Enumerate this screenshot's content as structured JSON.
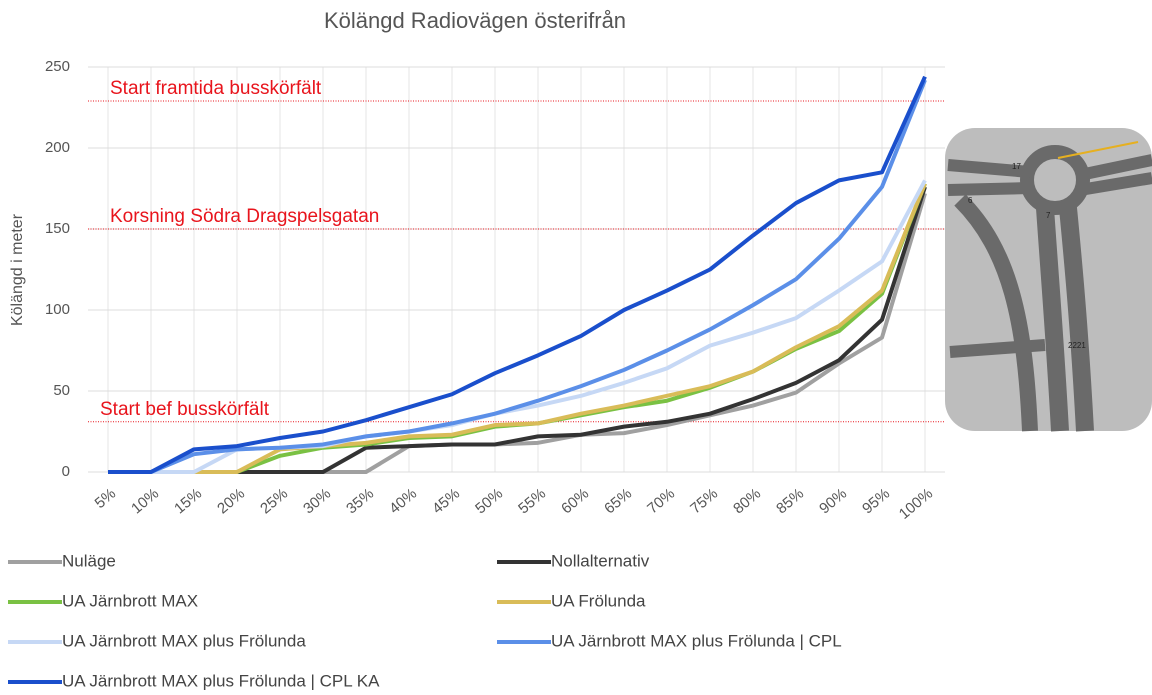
{
  "chart_data": {
    "type": "line",
    "title": "Kölängd Radiovägen österifrån",
    "y_label": "Kölängd i meter",
    "categories": [
      "5%",
      "10%",
      "15%",
      "20%",
      "25%",
      "30%",
      "35%",
      "40%",
      "45%",
      "50%",
      "55%",
      "60%",
      "65%",
      "70%",
      "75%",
      "80%",
      "85%",
      "90%",
      "95%",
      "100%"
    ],
    "series": [
      {
        "name": "Nuläge",
        "color": "#a0a0a0",
        "values": [
          0,
          0,
          0,
          0,
          0,
          0,
          0,
          16,
          17,
          17,
          18,
          23,
          24,
          29,
          35,
          41,
          49,
          67,
          83,
          172
        ]
      },
      {
        "name": "Nollalternativ",
        "color": "#333333",
        "values": [
          0,
          0,
          0,
          0,
          0,
          0,
          15,
          16,
          17,
          17,
          22,
          23,
          28,
          31,
          36,
          45,
          55,
          69,
          94,
          176
        ]
      },
      {
        "name": "UA Järnbrott MAX",
        "color": "#7ac143",
        "values": [
          0,
          0,
          0,
          0,
          10,
          15,
          17,
          21,
          22,
          28,
          30,
          35,
          40,
          44,
          52,
          62,
          76,
          87,
          110,
          178
        ]
      },
      {
        "name": "UA Frölunda",
        "color": "#d9bc58",
        "values": [
          0,
          0,
          0,
          0,
          14,
          16,
          18,
          22,
          23,
          29,
          30,
          36,
          41,
          47,
          53,
          62,
          77,
          90,
          112,
          178
        ]
      },
      {
        "name": "UA Järnbrott MAX plus Frölunda",
        "color": "#c6d8f5",
        "values": [
          0,
          0,
          0,
          14,
          15,
          16,
          22,
          25,
          29,
          36,
          41,
          47,
          55,
          64,
          78,
          86,
          95,
          112,
          130,
          180
        ]
      },
      {
        "name": "UA Järnbrott MAX plus Frölunda | CPL",
        "color": "#5b8fe8",
        "values": [
          0,
          0,
          11,
          14,
          15,
          17,
          22,
          25,
          30,
          36,
          44,
          53,
          63,
          75,
          88,
          103,
          119,
          144,
          176,
          242
        ]
      },
      {
        "name": "UA Järnbrott MAX plus Frölunda | CPL KA",
        "color": "#1a4fcc",
        "values": [
          0,
          0,
          14,
          16,
          21,
          25,
          32,
          40,
          48,
          61,
          72,
          84,
          100,
          112,
          125,
          146,
          166,
          180,
          185,
          244
        ]
      }
    ],
    "reference_lines": [
      {
        "label": "Start framtida busskörfält",
        "value": 229
      },
      {
        "label": "Korsning Södra Dragspelsgatan",
        "value": 150
      },
      {
        "label": "Start bef busskörfält",
        "value": 31
      }
    ],
    "map_labels": [
      "17",
      "6",
      "7",
      "2221"
    ],
    "ylim": [
      0,
      250
    ],
    "yticks": [
      0,
      50,
      100,
      150,
      200,
      250
    ],
    "grid": true
  }
}
